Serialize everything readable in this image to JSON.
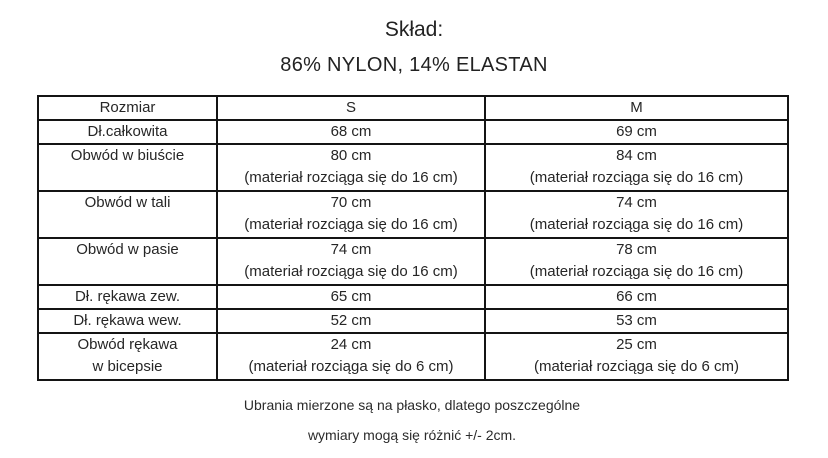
{
  "title": "Skład:",
  "subtitle": "86% NYLON, 14% ELASTAN",
  "table": {
    "headers": [
      "Rozmiar",
      "S",
      "M"
    ],
    "rows": [
      {
        "label": "Dł.całkowita",
        "s": "68 cm",
        "m": "69 cm"
      },
      {
        "label": "Obwód w biuście",
        "s": "80 cm",
        "s_note": "(materiał rozciąga się do 16 cm)",
        "m": "84 cm",
        "m_note": "(materiał rozciąga się do 16 cm)"
      },
      {
        "label": "Obwód w tali",
        "s": "70 cm",
        "s_note": "(materiał rozciąga się do 16 cm)",
        "m": "74 cm",
        "m_note": "(materiał rozciąga się do 16 cm)"
      },
      {
        "label": "Obwód w pasie",
        "s": "74 cm",
        "s_note": "(materiał rozciąga się do 16 cm)",
        "m": "78 cm",
        "m_note": "(materiał rozciąga się do 16 cm)"
      },
      {
        "label": "Dł. rękawa zew.",
        "s": "65 cm",
        "m": "66 cm"
      },
      {
        "label": "Dł. rękawa wew.",
        "s": "52 cm",
        "m": "53 cm"
      },
      {
        "label": "Obwód rękawa",
        "label2": "w bicepsie",
        "s": "24 cm",
        "s_note": "(materiał rozciąga się do 6 cm)",
        "m": "25 cm",
        "m_note": "(materiał rozciąga się do 6 cm)"
      }
    ]
  },
  "footer": {
    "line1": "Ubrania mierzone są na płasko, dlatego poszczególne",
    "line2": "wymiary mogą się różnić +/- 2cm."
  },
  "colors": {
    "background": "#ffffff",
    "text": "#262626",
    "border": "#141414"
  }
}
